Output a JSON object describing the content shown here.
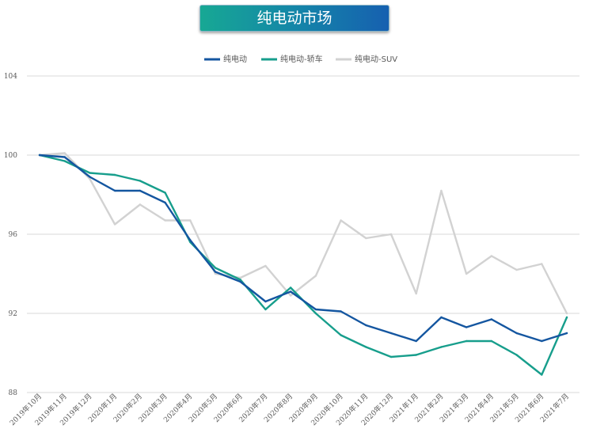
{
  "chart_data": {
    "type": "line",
    "title": "纯电动市场",
    "legend_position": "top",
    "grid": true,
    "ylim": [
      88,
      104
    ],
    "yticks": [
      88,
      92,
      96,
      100,
      104
    ],
    "categories": [
      "2019年10月",
      "2019年11月",
      "2019年12月",
      "2020年1月",
      "2020年2月",
      "2020年3月",
      "2020年4月",
      "2020年5月",
      "2020年6月",
      "2020年7月",
      "2020年8月",
      "2020年9月",
      "2020年10月",
      "2020年11月",
      "2020年12月",
      "2021年1月",
      "2021年2月",
      "2021年3月",
      "2021年4月",
      "2021年5月",
      "2021年6月",
      "2021年7月"
    ],
    "series": [
      {
        "name": "纯电动",
        "color": "#1456a0",
        "values": [
          100.0,
          99.9,
          98.9,
          98.2,
          98.2,
          97.6,
          95.7,
          94.1,
          93.6,
          92.6,
          93.1,
          92.2,
          92.1,
          91.4,
          91.0,
          90.6,
          91.8,
          91.3,
          91.7,
          91.0,
          90.6,
          91.0
        ]
      },
      {
        "name": "纯电动-轿车",
        "color": "#179e8c",
        "values": [
          100.0,
          99.7,
          99.1,
          99.0,
          98.7,
          98.1,
          95.6,
          94.3,
          93.7,
          92.2,
          93.3,
          92.0,
          90.9,
          90.3,
          89.8,
          89.9,
          90.3,
          90.6,
          90.6,
          89.9,
          88.9,
          91.8
        ]
      },
      {
        "name": "纯电动-SUV",
        "color": "#d2d2d2",
        "values": [
          100.0,
          100.1,
          98.8,
          96.5,
          97.5,
          96.7,
          96.7,
          94.0,
          93.8,
          94.4,
          92.9,
          93.9,
          96.7,
          95.8,
          96.0,
          93.0,
          98.2,
          94.0,
          94.9,
          94.2,
          94.5,
          92.0
        ]
      }
    ]
  }
}
